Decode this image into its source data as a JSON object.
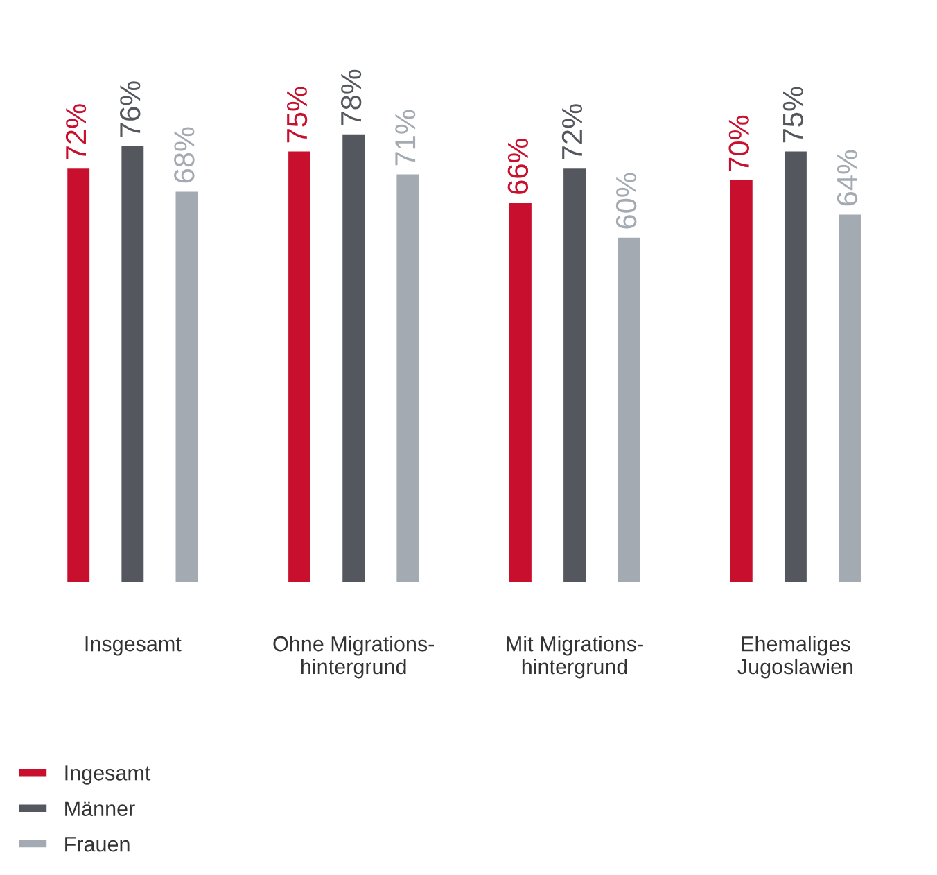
{
  "chart_data": {
    "type": "bar",
    "categories": [
      "Insgesamt",
      "Ohne Migrations-\nhintergrund",
      "Mit Migrations-\nhintergrund",
      "Ehemaliges\nJugoslawien"
    ],
    "series": [
      {
        "name": "Ingesamt",
        "color": "#c8102e",
        "values": [
          72,
          75,
          66,
          70
        ],
        "value_labels": [
          "72%",
          "75%",
          "66%",
          "70%"
        ]
      },
      {
        "name": "Männer",
        "color": "#54585e",
        "values": [
          76,
          78,
          72,
          75
        ],
        "value_labels": [
          "76%",
          "78%",
          "72%",
          "75%"
        ]
      },
      {
        "name": "Frauen",
        "color": "#a3aab2",
        "values": [
          68,
          71,
          60,
          64
        ],
        "value_labels": [
          "68%",
          "71%",
          "60%",
          "64%"
        ]
      }
    ],
    "legend": "bottom left",
    "grid": false
  }
}
